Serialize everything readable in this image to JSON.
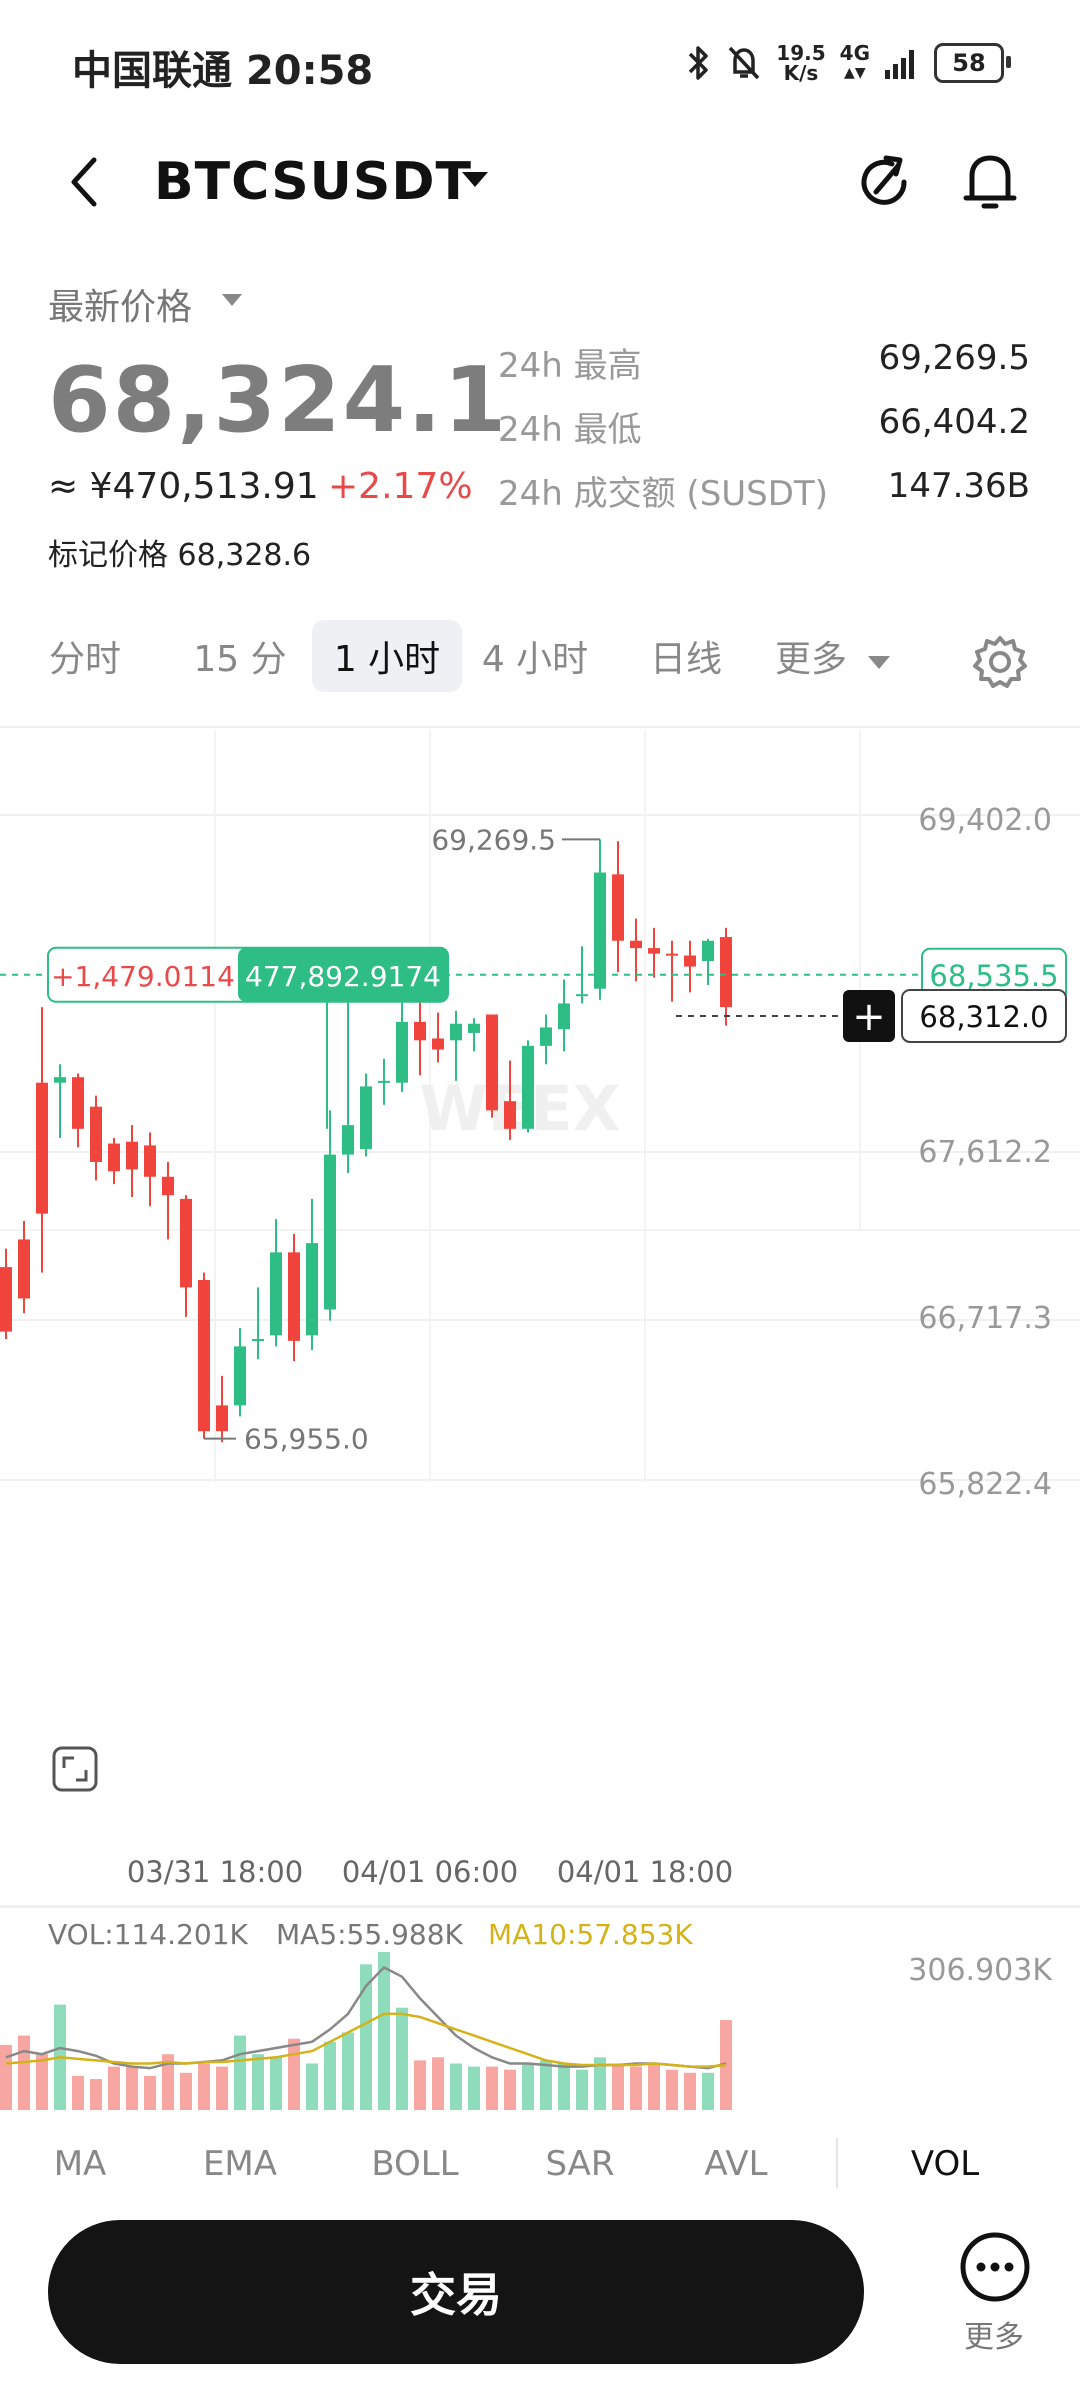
{
  "status_bar": {
    "carrier": "中国联通",
    "time": "20:58",
    "speed_top": "19.5",
    "speed_bottom": "K/s",
    "network": "4G",
    "battery": "58"
  },
  "header": {
    "pair": "BTCSUSDT"
  },
  "price": {
    "label": "最新价格",
    "last": "68,324.1",
    "cny": "≈ ¥470,513.91",
    "change_pct": "+2.17%",
    "mark_label": "标记价格",
    "mark_value": "68,328.6",
    "stats": [
      {
        "label": "24h 最高",
        "value": "69,269.5"
      },
      {
        "label": "24h 最低",
        "value": "66,404.2"
      },
      {
        "label": "24h 成交额 (SUSDT)",
        "value": "147.36B"
      }
    ]
  },
  "timeframes": [
    {
      "label": "分时",
      "active": false
    },
    {
      "label": "15 分",
      "active": false
    },
    {
      "label": "1 小时",
      "active": true
    },
    {
      "label": "4 小时",
      "active": false
    },
    {
      "label": "日线",
      "active": false
    },
    {
      "label": "更多",
      "active": false
    }
  ],
  "chart_data": {
    "type": "candlestick",
    "interval": "1 小时",
    "y_axis_labels": [
      "69,402.0",
      "67,612.2",
      "66,717.3",
      "65,822.4"
    ],
    "ylim": [
      65822.4,
      69402.0
    ],
    "x_axis_labels": [
      "03/31 18:00",
      "04/01 06:00",
      "04/01 18:00"
    ],
    "high_label": "69,269.5",
    "low_label": "65,955.0",
    "last_price_tag": "68,535.5",
    "crosshair_price": "68,312.0",
    "crosshair_box_left": "+1,479.0114",
    "crosshair_box_right": "477,892.9174",
    "watermark": "WEEX",
    "up_color": "#2ebd85",
    "down_color": "#f0443c",
    "candles": [
      {
        "o": 66950,
        "h": 67050,
        "l": 66560,
        "c": 66600
      },
      {
        "o": 67100,
        "h": 67200,
        "l": 66700,
        "c": 66780
      },
      {
        "o": 67950,
        "h": 68360,
        "l": 66920,
        "c": 67240
      },
      {
        "o": 67950,
        "h": 68050,
        "l": 67650,
        "c": 67980
      },
      {
        "o": 67980,
        "h": 68000,
        "l": 67600,
        "c": 67700
      },
      {
        "o": 67820,
        "h": 67880,
        "l": 67420,
        "c": 67520
      },
      {
        "o": 67620,
        "h": 67650,
        "l": 67400,
        "c": 67470
      },
      {
        "o": 67630,
        "h": 67720,
        "l": 67330,
        "c": 67480
      },
      {
        "o": 67610,
        "h": 67680,
        "l": 67280,
        "c": 67440
      },
      {
        "o": 67440,
        "h": 67520,
        "l": 67100,
        "c": 67340
      },
      {
        "o": 67320,
        "h": 67340,
        "l": 66680,
        "c": 66840
      },
      {
        "o": 66880,
        "h": 66920,
        "l": 66020,
        "c": 66060
      },
      {
        "o": 66200,
        "h": 66360,
        "l": 66000,
        "c": 66060
      },
      {
        "o": 66200,
        "h": 66620,
        "l": 66140,
        "c": 66520
      },
      {
        "o": 66560,
        "h": 66840,
        "l": 66450,
        "c": 66560
      },
      {
        "o": 66580,
        "h": 67210,
        "l": 66520,
        "c": 67030
      },
      {
        "o": 67030,
        "h": 67130,
        "l": 66440,
        "c": 66550
      },
      {
        "o": 66580,
        "h": 67320,
        "l": 66500,
        "c": 67080
      },
      {
        "o": 66720,
        "h": 67800,
        "l": 66660,
        "c": 67560
      },
      {
        "o": 67560,
        "h": 68470,
        "l": 67460,
        "c": 67720
      },
      {
        "o": 67590,
        "h": 68000,
        "l": 67550,
        "c": 67930
      },
      {
        "o": 67960,
        "h": 68080,
        "l": 67830,
        "c": 67960
      },
      {
        "o": 67950,
        "h": 68390,
        "l": 67900,
        "c": 68280
      },
      {
        "o": 68280,
        "h": 68420,
        "l": 67990,
        "c": 68180
      },
      {
        "o": 68190,
        "h": 68330,
        "l": 68060,
        "c": 68130
      },
      {
        "o": 68180,
        "h": 68340,
        "l": 67960,
        "c": 68270
      },
      {
        "o": 68220,
        "h": 68300,
        "l": 68120,
        "c": 68270
      },
      {
        "o": 68320,
        "h": 68310,
        "l": 67760,
        "c": 67800
      },
      {
        "o": 67850,
        "h": 68070,
        "l": 67640,
        "c": 67700
      },
      {
        "o": 67700,
        "h": 68180,
        "l": 67680,
        "c": 68150
      },
      {
        "o": 68150,
        "h": 68320,
        "l": 68050,
        "c": 68250
      },
      {
        "o": 68240,
        "h": 68510,
        "l": 68120,
        "c": 68380
      },
      {
        "o": 68430,
        "h": 68690,
        "l": 68380,
        "c": 68430
      },
      {
        "o": 68460,
        "h": 69270,
        "l": 68400,
        "c": 69090
      },
      {
        "o": 69080,
        "h": 69260,
        "l": 68550,
        "c": 68720
      },
      {
        "o": 68720,
        "h": 68840,
        "l": 68500,
        "c": 68680
      },
      {
        "o": 68680,
        "h": 68790,
        "l": 68520,
        "c": 68650
      },
      {
        "o": 68650,
        "h": 68720,
        "l": 68390,
        "c": 68640
      },
      {
        "o": 68640,
        "h": 68720,
        "l": 68440,
        "c": 68580
      },
      {
        "o": 68610,
        "h": 68730,
        "l": 68480,
        "c": 68720
      },
      {
        "o": 68740,
        "h": 68790,
        "l": 68260,
        "c": 68360
      }
    ]
  },
  "volume": {
    "vol_label": "VOL:114.201K",
    "ma5_label": "MA5:55.988K",
    "ma10_label": "MA10:57.853K",
    "max_label": "306.903K",
    "ma10_color": "#d4b21a",
    "bars": [
      42,
      48,
      36,
      68,
      22,
      20,
      28,
      28,
      22,
      36,
      24,
      30,
      28,
      48,
      36,
      34,
      46,
      30,
      44,
      50,
      94,
      102,
      66,
      32,
      34,
      30,
      28,
      28,
      26,
      30,
      32,
      30,
      26,
      34,
      30,
      28,
      30,
      26,
      24,
      24,
      58
    ],
    "ma5": [
      34,
      38,
      36,
      40,
      38,
      35,
      30,
      28,
      27,
      30,
      30,
      31,
      32,
      36,
      38,
      40,
      42,
      44,
      52,
      62,
      80,
      92,
      86,
      72,
      60,
      48,
      40,
      34,
      30,
      30,
      29,
      28,
      28,
      29,
      29,
      30,
      30,
      29,
      28,
      27,
      30
    ],
    "ma10": [
      30,
      31,
      32,
      34,
      33,
      32,
      31,
      30,
      30,
      31,
      30,
      31,
      31,
      32,
      33,
      34,
      36,
      38,
      44,
      50,
      56,
      62,
      62,
      60,
      56,
      52,
      48,
      44,
      40,
      36,
      32,
      30,
      29,
      29,
      29,
      29,
      30,
      29,
      28,
      28,
      29
    ]
  },
  "indicators": [
    {
      "label": "MA",
      "active": false
    },
    {
      "label": "EMA",
      "active": false
    },
    {
      "label": "BOLL",
      "active": false
    },
    {
      "label": "SAR",
      "active": false
    },
    {
      "label": "AVL",
      "active": false
    },
    {
      "label": "VOL",
      "active": true
    }
  ],
  "bottom": {
    "trade_label": "交易",
    "more_label": "更多"
  }
}
